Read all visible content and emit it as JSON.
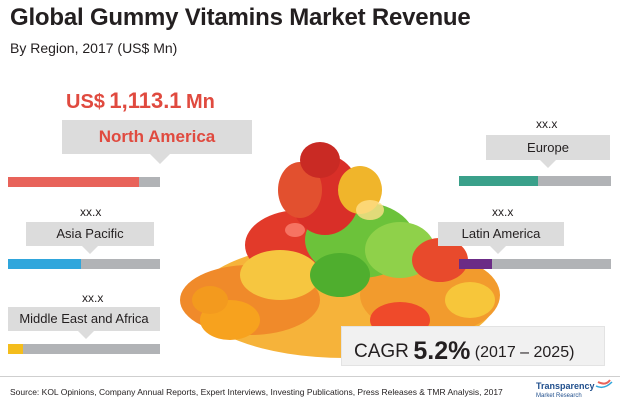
{
  "title": "Global Gummy Vitamins Market Revenue",
  "subtitle": "By Region, 2017 (US$ Mn)",
  "headline": {
    "currency": "US$",
    "value": "1,113.1",
    "unit": "Mn"
  },
  "chart_data": {
    "type": "bar",
    "title": "Global Gummy Vitamins Market Revenue",
    "subtitle": "By Region, 2017 (US$ Mn)",
    "categories": [
      "North America",
      "Europe",
      "Asia Pacific",
      "Latin America",
      "Middle East and Africa"
    ],
    "value_labels": [
      "US$ 1,113.1 Mn",
      "xx.x",
      "xx.x",
      "xx.x",
      "xx.x"
    ],
    "values": [
      1113.1,
      null,
      null,
      null,
      null
    ],
    "bar_fill_fraction": [
      0.86,
      0.52,
      0.48,
      0.22,
      0.1
    ],
    "colors": [
      "#e8635a",
      "#3aa08a",
      "#2fa6dc",
      "#6b2c86",
      "#f4bd1c"
    ],
    "track_color": "#b1b3b6",
    "cagr": {
      "label": "CAGR",
      "value": "5.2%",
      "period": "(2017 – 2025)"
    }
  },
  "source": "Source: KOL Opinions, Company Annual Reports, Expert Interviews, Investing Publications, Press Releases & TMR Analysis, 2017",
  "logo": {
    "line1": "Transparency",
    "line2": "Market Research"
  }
}
